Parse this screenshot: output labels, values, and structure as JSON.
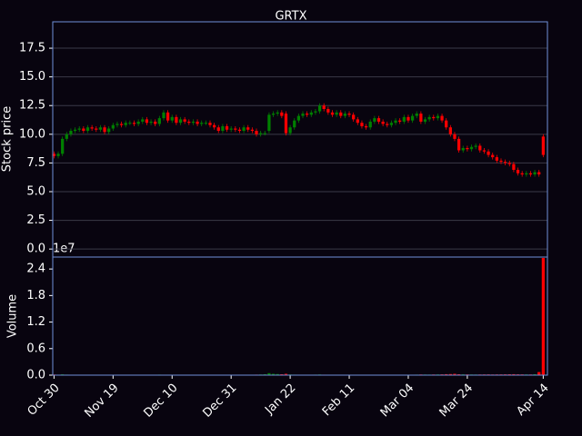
{
  "chart_data": {
    "type": "candlestick",
    "title": "GRTX",
    "ylabel": "Stock price",
    "volume_ylabel": "Volume",
    "volume_offset_label": "1e7",
    "up_color": "#008000",
    "down_color": "#ff0000",
    "grid": true,
    "xlim": [
      -0.3,
      117
    ],
    "xticks": [
      {
        "value": 0,
        "label": "Oct 30"
      },
      {
        "value": 14,
        "label": "Nov 19"
      },
      {
        "value": 28,
        "label": "Dec 10"
      },
      {
        "value": 42,
        "label": "Dec 31"
      },
      {
        "value": 56,
        "label": "Jan 22"
      },
      {
        "value": 70,
        "label": "Feb 11"
      },
      {
        "value": 84,
        "label": "Mar 04"
      },
      {
        "value": 98,
        "label": "Mar 24"
      },
      {
        "value": 116,
        "label": "Apr 14"
      }
    ],
    "ylim": [
      -0.7,
      19.8
    ],
    "yticks": [
      {
        "value": 0,
        "label": "0.0"
      },
      {
        "value": 2.5,
        "label": "2.5"
      },
      {
        "value": 5,
        "label": "5.0"
      },
      {
        "value": 7.5,
        "label": "7.5"
      },
      {
        "value": 10,
        "label": "10.0"
      },
      {
        "value": 12.5,
        "label": "12.5"
      },
      {
        "value": 15,
        "label": "15.0"
      },
      {
        "value": 17.5,
        "label": "17.5"
      }
    ],
    "volume_ylim": [
      0,
      26700000
    ],
    "volume_yticks": [
      {
        "value": 0,
        "label": "0.0"
      },
      {
        "value": 6000000,
        "label": "0.6"
      },
      {
        "value": 12000000,
        "label": "1.2"
      },
      {
        "value": 18000000,
        "label": "1.8"
      },
      {
        "value": 24000000,
        "label": "2.4"
      }
    ],
    "open": [
      8.3,
      8.1,
      8.3,
      9.6,
      10.0,
      10.3,
      10.4,
      10.5,
      10.3,
      10.6,
      10.5,
      10.4,
      10.6,
      10.2,
      10.5,
      10.8,
      10.9,
      10.8,
      11.0,
      11.0,
      10.9,
      11.1,
      11.3,
      11.0,
      11.1,
      10.9,
      11.4,
      11.9,
      11.2,
      11.5,
      11.0,
      11.3,
      11.1,
      11.0,
      11.1,
      10.9,
      11.0,
      11.0,
      10.8,
      10.6,
      10.3,
      10.7,
      10.4,
      10.5,
      10.4,
      10.3,
      10.6,
      10.4,
      10.3,
      10.0,
      10.1,
      10.3,
      11.7,
      11.8,
      11.9,
      11.8,
      10.1,
      10.6,
      11.2,
      11.6,
      11.8,
      11.7,
      11.9,
      12.0,
      12.5,
      12.2,
      11.9,
      11.7,
      11.9,
      11.6,
      11.8,
      11.7,
      11.3,
      11.0,
      10.7,
      10.6,
      11.1,
      11.4,
      11.1,
      10.9,
      10.8,
      11.0,
      11.2,
      11.1,
      11.5,
      11.2,
      11.6,
      11.8,
      11.1,
      11.3,
      11.5,
      11.4,
      11.6,
      11.2,
      10.6,
      10.0,
      9.6,
      8.6,
      8.8,
      8.7,
      8.9,
      9.0,
      8.6,
      8.5,
      8.2,
      8.0,
      7.7,
      7.6,
      7.5,
      7.4,
      6.9,
      6.6,
      6.5,
      6.6,
      6.5,
      6.7,
      9.8
    ],
    "high": [
      8.5,
      8.5,
      9.8,
      10.2,
      10.5,
      10.6,
      10.7,
      10.7,
      10.8,
      10.8,
      10.7,
      10.8,
      10.8,
      10.7,
      11.0,
      11.1,
      11.1,
      11.2,
      11.2,
      11.2,
      11.3,
      11.5,
      11.5,
      11.3,
      11.3,
      11.6,
      12.1,
      12.1,
      11.7,
      11.7,
      11.5,
      11.5,
      11.3,
      11.3,
      11.3,
      11.2,
      11.2,
      11.2,
      11.0,
      10.8,
      10.9,
      10.9,
      10.7,
      10.7,
      10.6,
      10.8,
      10.8,
      10.6,
      10.5,
      10.3,
      10.3,
      11.9,
      12.0,
      12.1,
      12.1,
      12.0,
      10.8,
      11.4,
      11.8,
      12.0,
      12.0,
      12.1,
      12.2,
      12.7,
      12.7,
      12.4,
      12.1,
      12.1,
      12.1,
      12.0,
      12.0,
      11.9,
      11.5,
      11.2,
      10.9,
      11.3,
      11.6,
      11.6,
      11.3,
      11.1,
      11.2,
      11.4,
      11.4,
      11.7,
      11.7,
      11.8,
      12.0,
      12.0,
      11.5,
      11.7,
      11.7,
      11.8,
      11.8,
      11.4,
      10.8,
      10.2,
      9.8,
      9.0,
      9.0,
      9.1,
      9.2,
      9.2,
      8.8,
      8.7,
      8.4,
      8.2,
      7.9,
      7.8,
      7.7,
      7.6,
      7.1,
      6.8,
      6.8,
      6.8,
      6.9,
      6.9,
      10.0
    ],
    "low": [
      7.9,
      7.9,
      8.1,
      9.4,
      9.8,
      10.1,
      10.2,
      10.1,
      10.1,
      10.3,
      10.2,
      10.2,
      10.0,
      10.0,
      10.3,
      10.6,
      10.6,
      10.6,
      10.8,
      10.7,
      10.7,
      10.9,
      10.8,
      10.8,
      10.7,
      10.7,
      11.2,
      11.0,
      11.0,
      10.8,
      10.8,
      10.9,
      10.8,
      10.8,
      10.7,
      10.7,
      10.8,
      10.6,
      10.4,
      10.1,
      10.1,
      10.2,
      10.2,
      10.2,
      10.1,
      10.1,
      10.2,
      10.1,
      9.8,
      9.8,
      9.9,
      10.1,
      11.5,
      11.6,
      11.4,
      9.9,
      9.9,
      10.4,
      11.0,
      11.4,
      11.5,
      11.5,
      11.7,
      11.8,
      12.0,
      11.7,
      11.5,
      11.5,
      11.4,
      11.4,
      11.5,
      11.1,
      10.8,
      10.5,
      10.4,
      10.4,
      10.9,
      10.9,
      10.7,
      10.6,
      10.6,
      10.8,
      10.9,
      10.9,
      11.0,
      11.0,
      11.4,
      10.9,
      10.9,
      11.1,
      11.2,
      11.2,
      11.0,
      10.4,
      9.8,
      9.4,
      8.4,
      8.4,
      8.5,
      8.5,
      8.7,
      8.4,
      8.3,
      8.0,
      7.8,
      7.5,
      7.4,
      7.3,
      7.2,
      6.7,
      6.4,
      6.3,
      6.3,
      6.3,
      6.3,
      6.3,
      8.0
    ],
    "close": [
      8.1,
      8.3,
      9.6,
      10.0,
      10.3,
      10.4,
      10.5,
      10.3,
      10.6,
      10.5,
      10.4,
      10.6,
      10.2,
      10.5,
      10.8,
      10.9,
      10.8,
      11.0,
      11.0,
      10.9,
      11.1,
      11.3,
      11.0,
      11.1,
      10.9,
      11.4,
      11.9,
      11.2,
      11.5,
      11.0,
      11.3,
      11.1,
      11.0,
      11.1,
      10.9,
      11.0,
      11.0,
      10.8,
      10.6,
      10.3,
      10.7,
      10.4,
      10.5,
      10.4,
      10.3,
      10.6,
      10.4,
      10.3,
      10.0,
      10.1,
      10.1,
      11.7,
      11.8,
      11.9,
      11.6,
      10.1,
      10.6,
      11.2,
      11.6,
      11.8,
      11.7,
      11.9,
      12.0,
      12.5,
      12.2,
      11.9,
      11.7,
      11.9,
      11.6,
      11.8,
      11.7,
      11.3,
      11.0,
      10.7,
      10.6,
      11.1,
      11.4,
      11.1,
      10.9,
      10.8,
      11.0,
      11.2,
      11.1,
      11.5,
      11.2,
      11.6,
      11.8,
      11.1,
      11.3,
      11.5,
      11.4,
      11.6,
      11.2,
      10.6,
      10.0,
      9.6,
      8.6,
      8.8,
      8.7,
      8.9,
      9.0,
      8.6,
      8.5,
      8.2,
      8.0,
      7.7,
      7.6,
      7.5,
      7.4,
      6.9,
      6.6,
      6.5,
      6.6,
      6.5,
      6.7,
      6.5,
      8.2
    ],
    "volume": [
      150000,
      90000,
      180000,
      120000,
      80000,
      70000,
      60000,
      50000,
      60000,
      70000,
      50000,
      60000,
      50000,
      40000,
      60000,
      80000,
      50000,
      60000,
      40000,
      50000,
      60000,
      70000,
      90000,
      60000,
      50000,
      120000,
      100000,
      90000,
      80000,
      70000,
      60000,
      50000,
      50000,
      40000,
      40000,
      50000,
      60000,
      50000,
      60000,
      70000,
      60000,
      50000,
      40000,
      50000,
      60000,
      70000,
      80000,
      90000,
      120000,
      150000,
      200000,
      450000,
      300000,
      250000,
      200000,
      300000,
      150000,
      120000,
      100000,
      90000,
      80000,
      100000,
      120000,
      150000,
      110000,
      90000,
      80000,
      70000,
      60000,
      70000,
      80000,
      90000,
      80000,
      70000,
      60000,
      80000,
      90000,
      70000,
      60000,
      50000,
      60000,
      70000,
      80000,
      90000,
      80000,
      100000,
      120000,
      150000,
      140000,
      130000,
      150000,
      160000,
      180000,
      220000,
      250000,
      300000,
      200000,
      180000,
      160000,
      150000,
      140000,
      150000,
      160000,
      170000,
      150000,
      160000,
      170000,
      180000,
      200000,
      220000,
      180000,
      170000,
      160000,
      150000,
      200000,
      700000,
      26500000
    ]
  }
}
